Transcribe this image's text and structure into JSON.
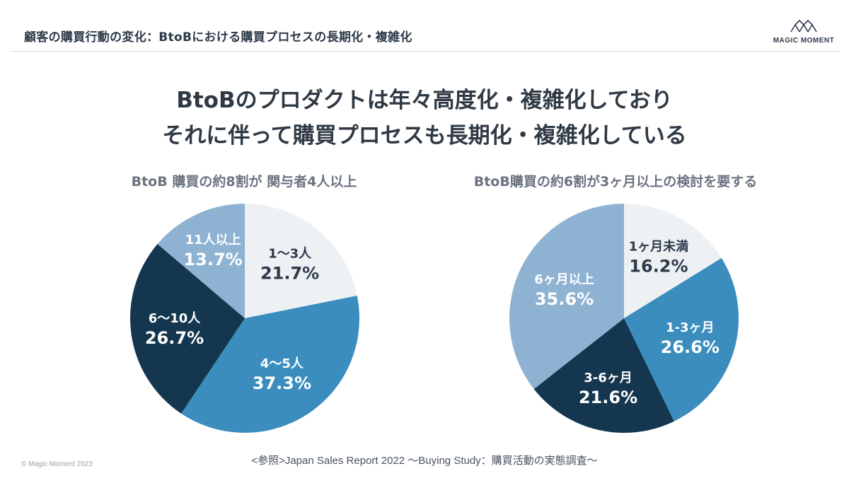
{
  "header": {
    "title": "顧客の購買行動の変化：BtoBにおける購買プロセスの長期化・複雑化",
    "logo_text": "MAGIC MOMENT"
  },
  "headline": {
    "line1": "BtoBのプロダクトは年々高度化・複雑化しており",
    "line2": "それに伴って購買プロセスも長期化・複雑化している"
  },
  "footer": {
    "source": "<参照>Japan Sales Report 2022 〜Buying Study：購買活動の実態調査〜",
    "copyright": "© Magic Moment 2023"
  },
  "chart_data": [
    {
      "type": "pie",
      "title": "BtoB 購買の約8割が 関与者4人以上",
      "categories": [
        "1〜3人",
        "4〜5人",
        "6〜10人",
        "11人以上"
      ],
      "values": [
        21.7,
        37.3,
        26.7,
        13.7
      ],
      "value_labels": [
        "21.7%",
        "37.3%",
        "26.7%",
        "13.7%"
      ],
      "colors": [
        "#eef1f4",
        "#3a8dbd",
        "#14364f",
        "#8eb2d1"
      ],
      "label_colors": [
        "#2d3a4a",
        "#ffffff",
        "#ffffff",
        "#ffffff"
      ],
      "start_angle": "12 o'clock",
      "direction": "clockwise"
    },
    {
      "type": "pie",
      "title": "BtoB購買の約6割が3ヶ月以上の検討を要する",
      "categories": [
        "1ヶ月未満",
        "1-3ヶ月",
        "3-6ヶ月",
        "6ヶ月以上"
      ],
      "values": [
        16.2,
        26.6,
        21.6,
        35.6
      ],
      "value_labels": [
        "16.2%",
        "26.6%",
        "21.6%",
        "35.6%"
      ],
      "colors": [
        "#eef1f4",
        "#3a8dbd",
        "#14364f",
        "#8eb2d1"
      ],
      "label_colors": [
        "#2d3a4a",
        "#ffffff",
        "#ffffff",
        "#ffffff"
      ],
      "start_angle": "12 o'clock",
      "direction": "clockwise"
    }
  ]
}
